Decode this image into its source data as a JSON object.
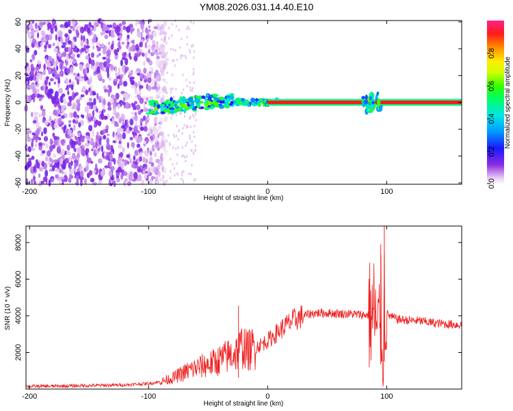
{
  "title": "YM08.2026.031.14.40.E10",
  "chart_data": [
    {
      "type": "heatmap",
      "xlabel": "Height of straight line (km)",
      "ylabel": "Frequency (Hz)",
      "xlim": [
        -203,
        163
      ],
      "ylim": [
        -61,
        61
      ],
      "xticks": [
        -200,
        -100,
        0,
        100
      ],
      "yticks": [
        -60,
        -40,
        -20,
        0,
        20,
        40,
        60
      ],
      "colorbar": {
        "label": "Normalized spectral amplitude",
        "range": [
          0.0,
          1.0
        ],
        "ticks": [
          0.0,
          0.2,
          0.4,
          0.6,
          0.8
        ],
        "tick_labels": [
          "0.0",
          "0.2",
          "0.4",
          "0.6",
          "0.8"
        ]
      },
      "features": {
        "noise_region_km": [
          -203,
          -85
        ],
        "tone_start_km": 0,
        "tone_freq_hz": 0,
        "tone_amplitude": 0.9,
        "rising_trace_km": [
          -100,
          -30
        ],
        "disturbance_km": [
          80,
          95
        ]
      }
    },
    {
      "type": "line",
      "xlabel": "Height of straight line (km)",
      "ylabel": "SNR (10 * v/v)",
      "xlim": [
        -203,
        163
      ],
      "ylim": [
        0,
        8900
      ],
      "xticks": [
        -200,
        -100,
        0,
        100
      ],
      "yticks": [
        2000,
        4000,
        6000,
        8000
      ],
      "color": "#ee2222",
      "series": [
        {
          "name": "SNR",
          "x": [
            -203,
            -180,
            -160,
            -140,
            -120,
            -100,
            -90,
            -80,
            -75,
            -70,
            -65,
            -60,
            -55,
            -50,
            -45,
            -40,
            -35,
            -30,
            -25,
            -22,
            -20,
            -18,
            -15,
            -10,
            -5,
            0,
            5,
            10,
            15,
            20,
            25,
            30,
            35,
            40,
            50,
            60,
            70,
            80,
            85,
            88,
            90,
            92,
            95,
            97,
            98,
            100,
            105,
            110,
            120,
            130,
            140,
            150,
            163
          ],
          "values": [
            150,
            160,
            180,
            200,
            230,
            300,
            400,
            600,
            750,
            900,
            1050,
            1150,
            1250,
            1350,
            1450,
            1600,
            1750,
            1900,
            2050,
            2300,
            2400,
            2100,
            2150,
            2300,
            2450,
            2650,
            2900,
            3200,
            3450,
            3700,
            3850,
            4000,
            4100,
            4150,
            4150,
            4120,
            4100,
            4050,
            4050,
            3900,
            4300,
            2800,
            4500,
            300,
            5000,
            4100,
            3900,
            3800,
            3750,
            3700,
            3600,
            3550,
            3500
          ]
        }
      ],
      "spikes": [
        {
          "x": -24.5,
          "y": 4550
        },
        {
          "x": 98,
          "y": 8900
        },
        {
          "x": 95,
          "y": 7900
        }
      ]
    }
  ]
}
